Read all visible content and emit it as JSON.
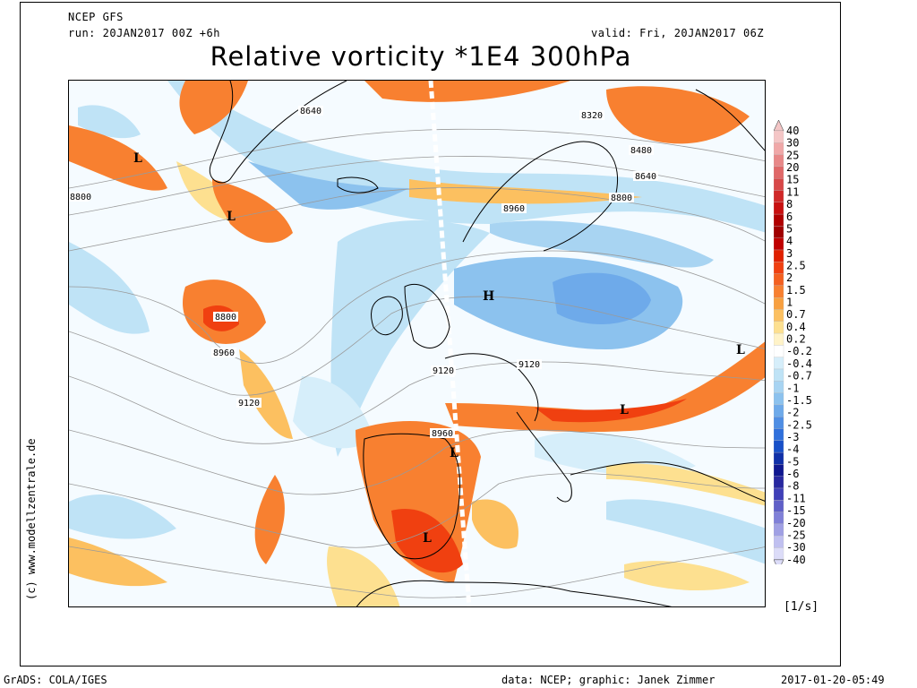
{
  "header": {
    "model": "NCEP GFS",
    "run": "run: 20JAN2017 00Z +6h",
    "valid": "valid: Fri, 20JAN2017 06Z",
    "title": "Relative vorticity *1E4 300hPa"
  },
  "credit": "(c) www.modellzentrale.de",
  "footer": {
    "left": "GrADS: COLA/IGES",
    "center": "data: NCEP; graphic: Janek Zimmer",
    "right": "2017-01-20-05:49"
  },
  "units": "[1/s]",
  "legend": {
    "labels": [
      "40",
      "30",
      "25",
      "20",
      "15",
      "11",
      "8",
      "6",
      "5",
      "4",
      "3",
      "2.5",
      "2",
      "1.5",
      "1",
      "0.7",
      "0.4",
      "0.2",
      "-0.2",
      "-0.4",
      "-0.7",
      "-1",
      "-1.5",
      "-2",
      "-2.5",
      "-3",
      "-4",
      "-5",
      "-6",
      "-8",
      "-11",
      "-15",
      "-20",
      "-25",
      "-30",
      "-40"
    ],
    "colors": [
      "#f4c6c6",
      "#f0a8a8",
      "#e88888",
      "#e06868",
      "#d84848",
      "#d02828",
      "#c81010",
      "#b00000",
      "#a00000",
      "#c00000",
      "#e02000",
      "#f04010",
      "#f46020",
      "#f88030",
      "#f8a040",
      "#fcc060",
      "#fde090",
      "#fff3c8",
      "#ffffff",
      "#d6eefa",
      "#bfe3f6",
      "#a8d4f2",
      "#8cc2ee",
      "#6eaaea",
      "#4f8ee4",
      "#3070dc",
      "#1850c8",
      "#1030a8",
      "#101890",
      "#2828a0",
      "#4040b8",
      "#6060c8",
      "#8080d8",
      "#a0a0e4",
      "#c0c0f0",
      "#dcdcf8"
    ]
  },
  "map_labels": {
    "lows": [
      "L",
      "L",
      "L",
      "L",
      "L",
      "L"
    ],
    "high": "H",
    "contours": [
      "8480",
      "8640",
      "8320",
      "8480",
      "8640",
      "8800",
      "8960",
      "8800",
      "8960",
      "9120",
      "9120",
      "9120",
      "8960",
      "8800"
    ]
  },
  "colors": {
    "warm": "#f88030",
    "warm_light": "#fcc060",
    "cool": "#8cc2ee",
    "cool_light": "#d6eefa",
    "coast": "#000000",
    "contour": "#9a9a9a"
  }
}
